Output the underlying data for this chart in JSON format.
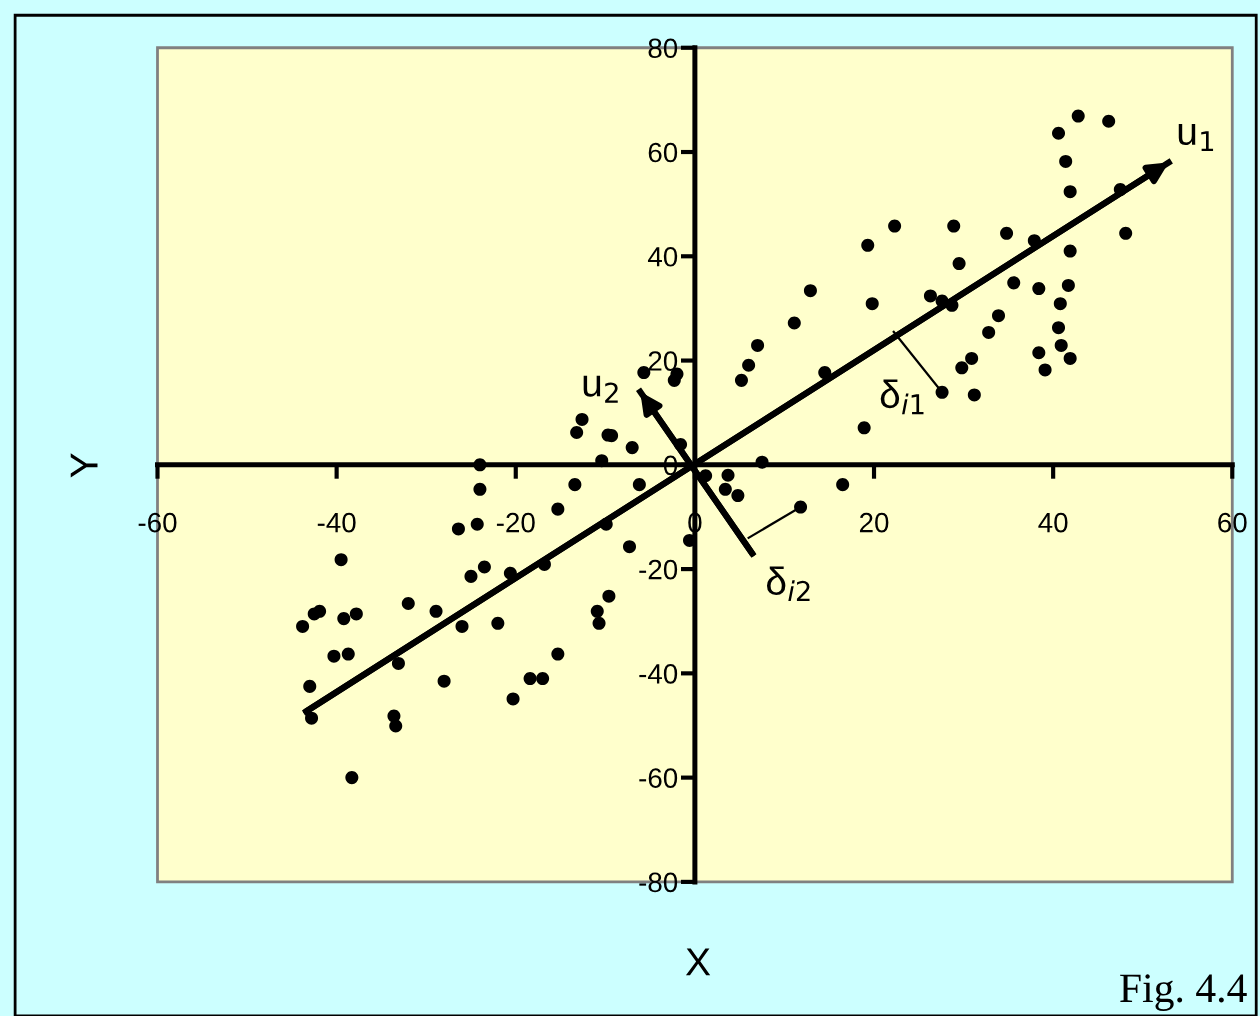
{
  "chart_data": {
    "type": "scatter",
    "xlabel": "X",
    "ylabel": "Y",
    "xlim": [
      -60,
      60
    ],
    "ylim": [
      -80,
      80
    ],
    "xticks": [
      -60,
      -40,
      -20,
      0,
      20,
      40,
      60
    ],
    "yticks": [
      -80,
      -60,
      -40,
      -20,
      0,
      20,
      40,
      60,
      80
    ],
    "grid": false,
    "legend": false,
    "marker": "circle",
    "series": [
      {
        "color": "#000000",
        "x": [
          -43.8,
          -43.0,
          -42.8,
          -42.5,
          -41.9,
          -39.5,
          -39.2,
          -40.3,
          -38.7,
          -37.8,
          -38.3,
          -32.0,
          -33.1,
          -33.6,
          -33.4,
          -28.9,
          -28.0,
          -26.4,
          -26.0,
          -25.0,
          -24.0,
          -24.0,
          -24.3,
          -23.5,
          -22.0,
          -20.6,
          -20.3,
          -18.4,
          -17.0,
          -16.8,
          -15.3,
          -15.3,
          -13.4,
          -13.2,
          -12.6,
          -10.9,
          -10.7,
          -9.6,
          -9.9,
          -10.4,
          -9.7,
          -9.3,
          -7.3,
          -7.0,
          -6.2,
          -5.7,
          -2.3,
          -2.0,
          -1.6,
          -0.6,
          1.2,
          3.7,
          3.4,
          4.8,
          7.5,
          11.8,
          5.2,
          6.0,
          7.0,
          11.1,
          12.9,
          14.5,
          16.5,
          18.9,
          19.3,
          19.8,
          22.3,
          26.3,
          27.6,
          27.6,
          28.7,
          28.9,
          29.5,
          29.8,
          30.9,
          31.2,
          32.8,
          33.9,
          34.8,
          35.6,
          37.9,
          38.4,
          38.4,
          39.1,
          40.6,
          40.8,
          40.6,
          40.9,
          41.4,
          41.9,
          41.9,
          41.7,
          41.9,
          42.8,
          46.2,
          47.5,
          48.1
        ],
        "values": [
          -31,
          -42.5,
          -48.6,
          -28.6,
          -28.1,
          -18.2,
          -29.5,
          -36.7,
          -36.3,
          -28.6,
          -60,
          -26.6,
          -38.1,
          -48.2,
          -50.1,
          -28.1,
          -41.5,
          -12.3,
          -31,
          -21.4,
          0,
          -4.7,
          -11.4,
          -19.6,
          -30.4,
          -20.8,
          -44.9,
          -41,
          -41,
          -19.1,
          -36.3,
          -8.5,
          -3.8,
          6.2,
          8.7,
          -28.1,
          -30.4,
          -25.2,
          -11.4,
          0.8,
          5.7,
          5.6,
          -15.7,
          3.3,
          -3.8,
          17.7,
          16.2,
          17.4,
          3.9,
          -14.5,
          -2.1,
          -2.0,
          -4.7,
          -5.9,
          0.5,
          -8.1,
          16.2,
          19.1,
          22.9,
          27.2,
          33.4,
          17.7,
          -3.8,
          7.1,
          42.1,
          30.9,
          45.8,
          32.4,
          31.4,
          13.9,
          30.6,
          45.8,
          38.6,
          18.6,
          20.4,
          13.4,
          25.4,
          28.6,
          44.4,
          34.9,
          43,
          33.8,
          21.5,
          18.2,
          63.6,
          30.9,
          26.3,
          22.9,
          58.2,
          52.4,
          41,
          34.4,
          20.4,
          66.9,
          65.9,
          52.8,
          44.4
        ]
      },
      {
        "type": "line",
        "color": "#000000",
        "marker": "none",
        "x": [
          -43.4,
          52.9
        ],
        "values": [
          -47.3,
          58
        ]
      },
      {
        "type": "line",
        "color": "#000000",
        "marker": "none",
        "x": [
          6.4,
          -6.1
        ],
        "values": [
          -17,
          14
        ]
      },
      {
        "type": "line",
        "color": "#000000",
        "marker": "none",
        "x": [
          27.6,
          22.2
        ],
        "values": [
          13.9,
          25.5
        ]
      },
      {
        "type": "line",
        "color": "#000000",
        "marker": "none",
        "x": [
          11.8,
          6.0
        ],
        "values": [
          -8.1,
          -14.0
        ]
      }
    ],
    "annotations": [
      "u$_{1}$",
      "u$_{2}$",
      "δ$_{i1}$",
      {
        "text": "δ$_{i2}$",
        "x": 11.8,
        "y": -8.1
      },
      "Fig. 4.4"
    ]
  }
}
